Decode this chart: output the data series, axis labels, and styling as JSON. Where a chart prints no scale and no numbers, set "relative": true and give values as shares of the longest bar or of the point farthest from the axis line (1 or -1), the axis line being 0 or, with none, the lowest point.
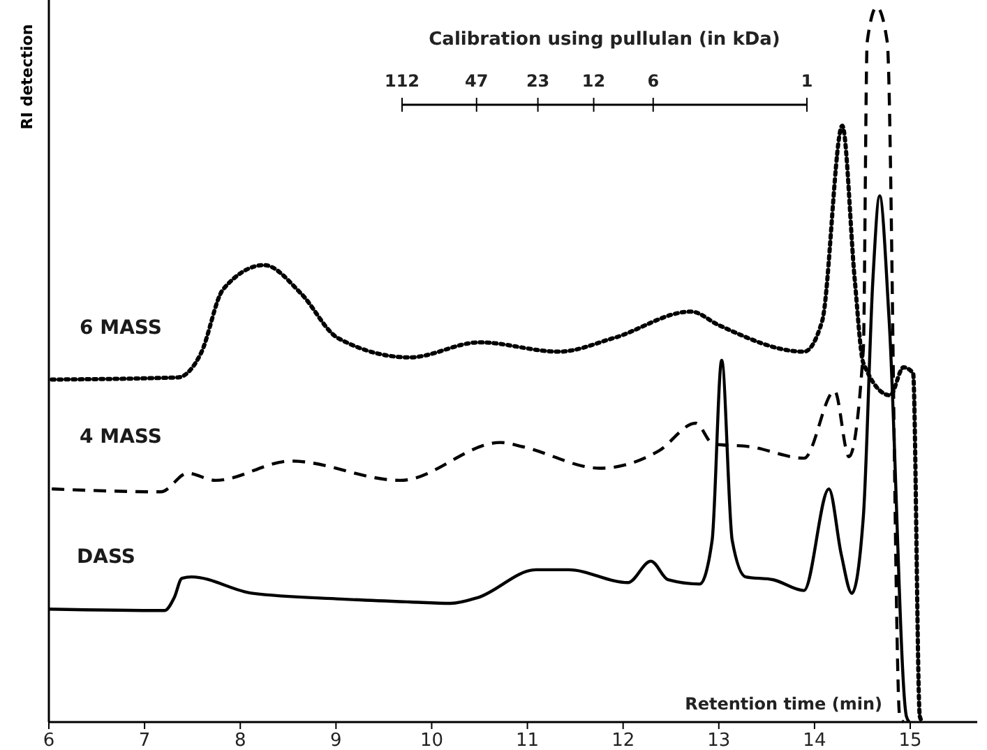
{
  "chart_data": {
    "type": "line",
    "relative": true,
    "xlabel": "Retention time (min)",
    "ylabel": "RI detection",
    "x2label": "Calibration using pullulan (in kDa)",
    "x2lim": [
      112,
      1
    ],
    "x2ticks": [
      112,
      47,
      23,
      12,
      6,
      1
    ],
    "log": "x2",
    "xlim": [
      6,
      15.7
    ],
    "xticks": [
      6,
      7,
      8,
      9,
      10,
      11,
      12,
      13,
      14,
      15
    ],
    "legend": false,
    "series": [
      {
        "name": "6 MASS",
        "color": "#000000",
        "line_style": "dotted",
        "x": [
          6.03,
          7.35,
          7.59,
          7.82,
          8.25,
          8.63,
          9.02,
          9.77,
          10.5,
          11.33,
          11.9,
          12.71,
          13.0,
          13.89,
          14.08,
          14.29,
          14.42,
          14.51,
          14.79,
          14.93,
          15.03,
          15.1,
          15.13
        ],
        "values": [
          0.479,
          0.482,
          0.516,
          0.605,
          0.639,
          0.6,
          0.537,
          0.51,
          0.531,
          0.518,
          0.537,
          0.574,
          0.555,
          0.518,
          0.561,
          0.834,
          0.619,
          0.502,
          0.457,
          0.496,
          0.488,
          0.008,
          0
        ]
      },
      {
        "name": "4 MASS",
        "color": "#000000",
        "line_style": "dashed",
        "x": [
          6.03,
          7.17,
          7.45,
          7.74,
          8.53,
          9.67,
          10.72,
          10.95,
          11.76,
          12.37,
          12.76,
          12.94,
          13.33,
          13.89,
          14.21,
          14.36,
          14.51,
          14.55,
          14.65,
          14.76,
          14.89,
          14.93
        ],
        "values": [
          0.326,
          0.322,
          0.348,
          0.338,
          0.365,
          0.338,
          0.391,
          0.385,
          0.355,
          0.379,
          0.418,
          0.389,
          0.385,
          0.369,
          0.463,
          0.371,
          0.521,
          0.951,
          1,
          0.951,
          0.008,
          0
        ]
      },
      {
        "name": "DASS",
        "color": "#000000",
        "line_style": "solid",
        "x": [
          6.0,
          7.21,
          7.31,
          7.39,
          7.49,
          8.13,
          9.06,
          9.77,
          10.2,
          10.48,
          11.09,
          11.43,
          12.05,
          12.29,
          12.47,
          12.8,
          12.93,
          13.03,
          13.14,
          13.28,
          13.57,
          13.89,
          14.15,
          14.28,
          14.39,
          14.51,
          14.61,
          14.68,
          14.78,
          14.96,
          14.99
        ],
        "values": [
          0.158,
          0.156,
          0.174,
          0.201,
          0.203,
          0.18,
          0.172,
          0.168,
          0.166,
          0.174,
          0.213,
          0.213,
          0.195,
          0.225,
          0.199,
          0.193,
          0.254,
          0.506,
          0.254,
          0.203,
          0.199,
          0.184,
          0.326,
          0.234,
          0.18,
          0.287,
          0.619,
          0.736,
          0.561,
          0.008,
          0
        ]
      }
    ]
  }
}
